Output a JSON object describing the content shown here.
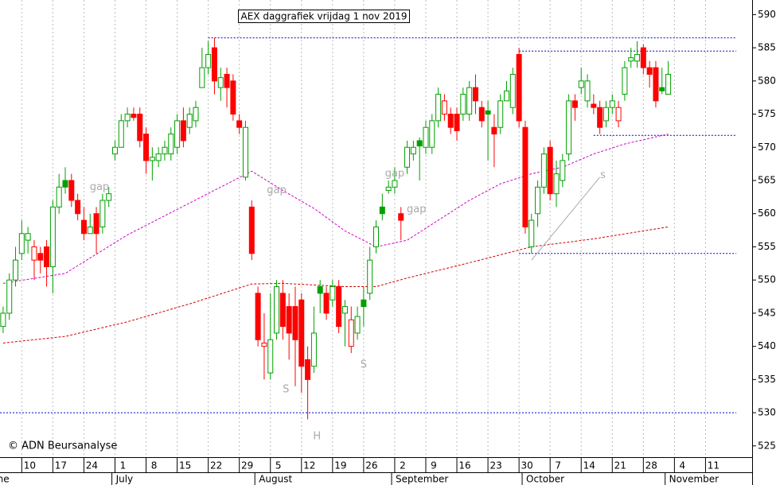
{
  "chart_data": {
    "type": "candlestick",
    "title": "AEX daggrafiek vrijdag 1 nov 2019",
    "copyright": "© ADN Beursanalyse",
    "xlim": [
      -0.5,
      120.5
    ],
    "ylim": [
      523.3,
      592.2
    ],
    "yticks": [
      525,
      530,
      535,
      540,
      545,
      550,
      555,
      560,
      565,
      570,
      575,
      580,
      585,
      590
    ],
    "xticks": [
      {
        "value": 3,
        "label": "10"
      },
      {
        "value": 8,
        "label": "17"
      },
      {
        "value": 13,
        "label": "24"
      },
      {
        "value": 18,
        "label": "1"
      },
      {
        "value": 23,
        "label": "8"
      },
      {
        "value": 28,
        "label": "15"
      },
      {
        "value": 33,
        "label": "22"
      },
      {
        "value": 38,
        "label": "29"
      },
      {
        "value": 43,
        "label": "5"
      },
      {
        "value": 48,
        "label": "12"
      },
      {
        "value": 53,
        "label": "19"
      },
      {
        "value": 58,
        "label": "26"
      },
      {
        "value": 63,
        "label": "2"
      },
      {
        "value": 68,
        "label": "9"
      },
      {
        "value": 73,
        "label": "16"
      },
      {
        "value": 78,
        "label": "23"
      },
      {
        "value": 83,
        "label": "30"
      },
      {
        "value": 88,
        "label": "7"
      },
      {
        "value": 93,
        "label": "14"
      },
      {
        "value": 98,
        "label": "21"
      },
      {
        "value": 103,
        "label": "28"
      },
      {
        "value": 108,
        "label": "4"
      },
      {
        "value": 113,
        "label": "11"
      }
    ],
    "months": [
      {
        "value": -3,
        "label": "June"
      },
      {
        "value": 17.5,
        "label": "July"
      },
      {
        "value": 40.5,
        "label": "August"
      },
      {
        "value": 62.5,
        "label": "September"
      },
      {
        "value": 83.5,
        "label": "October"
      },
      {
        "value": 106.5,
        "label": "November"
      }
    ],
    "up_color": "#00a000",
    "down_color": "#ff0000",
    "grid": true,
    "open": [
      543,
      545,
      550,
      554,
      556,
      553,
      554,
      555,
      552,
      561,
      565,
      565,
      562,
      559,
      557,
      560,
      558,
      562,
      569,
      570,
      574,
      575,
      575,
      572,
      568,
      568,
      569,
      569,
      570,
      574,
      573,
      574,
      579,
      582,
      585,
      579,
      581,
      580,
      574,
      565.5,
      561,
      548,
      540,
      536,
      542,
      548,
      546,
      546,
      547,
      538,
      537,
      549,
      548,
      547,
      549,
      545,
      540,
      542,
      547,
      548,
      555,
      561,
      563.5,
      564,
      560,
      567,
      569,
      571,
      570,
      570,
      574,
      575,
      575,
      575,
      575,
      575,
      579,
      576,
      575.5,
      573,
      573,
      577,
      576,
      584,
      573,
      555,
      560,
      564,
      570,
      563,
      565,
      569,
      577,
      579,
      577,
      576.5,
      576,
      574,
      576,
      574,
      578,
      583,
      583,
      585,
      582,
      582,
      579,
      578
    ],
    "high": [
      546,
      551,
      555,
      559,
      558,
      556,
      555,
      556,
      562,
      566,
      567,
      566,
      563,
      561,
      560,
      561,
      563,
      564,
      571,
      575,
      576,
      576,
      576,
      573,
      570,
      570,
      571,
      573,
      575,
      576,
      576,
      577,
      585,
      586,
      586.5,
      582,
      582,
      581,
      575,
      574,
      562,
      549,
      545,
      548,
      550,
      550,
      548,
      549,
      548,
      540,
      546,
      550,
      549,
      550,
      550,
      547,
      546,
      546,
      549,
      555,
      559,
      563,
      565,
      567,
      561,
      571,
      571,
      571.5,
      574,
      575,
      579,
      578,
      576,
      576,
      579,
      580,
      581,
      577,
      577,
      575,
      578,
      580,
      582,
      585,
      574,
      560,
      565,
      570,
      571,
      568,
      569,
      578,
      578,
      582,
      581,
      578,
      577,
      577,
      578,
      577,
      583,
      585,
      586,
      585.5,
      583,
      583,
      582,
      583
    ],
    "low": [
      542,
      544,
      549,
      553,
      554,
      550,
      551,
      549,
      548,
      560,
      563,
      561,
      559,
      556,
      557,
      554,
      557,
      561,
      568,
      570,
      573,
      574,
      570,
      566,
      565,
      567,
      568,
      568,
      569,
      570,
      572,
      573,
      579,
      581,
      578,
      577,
      576,
      574,
      572,
      565,
      553,
      540,
      535,
      535,
      541,
      541,
      538,
      534,
      533,
      529,
      536,
      545,
      544,
      546,
      542,
      540,
      539,
      541,
      543,
      547,
      554,
      559,
      563,
      563,
      556,
      566,
      568,
      565,
      569,
      569,
      573,
      574,
      572,
      571,
      574,
      574,
      575,
      573,
      568,
      567,
      572,
      577,
      575,
      573,
      557,
      554,
      558,
      563,
      562,
      561,
      564,
      568,
      574,
      578,
      576,
      575,
      572,
      573,
      575,
      573,
      577,
      582,
      582,
      581,
      579,
      576,
      578,
      578
    ],
    "close": [
      545,
      550,
      553,
      557,
      557,
      555,
      553,
      552,
      561,
      564,
      564,
      562,
      560,
      557,
      558,
      557,
      562,
      563,
      570,
      574,
      575,
      574.5,
      571,
      568,
      568.5,
      569,
      570,
      572,
      574,
      571,
      575,
      576,
      582,
      584,
      580,
      580.5,
      579,
      575,
      573,
      573,
      554,
      541,
      540.5,
      541,
      549,
      543,
      542,
      541,
      537,
      535,
      542,
      548,
      545,
      549,
      543,
      546,
      544,
      544.5,
      546,
      553,
      558,
      560,
      564,
      565,
      559,
      570,
      570,
      570.2,
      573,
      574,
      578,
      577,
      573,
      572.5,
      578,
      579,
      577,
      574,
      575,
      572,
      577,
      578.5,
      581,
      574,
      558,
      559,
      564,
      569,
      563,
      566,
      568,
      577,
      576,
      580,
      580,
      576,
      573,
      576,
      577,
      576,
      582,
      583.5,
      584,
      582,
      581,
      577,
      578.5,
      581
    ],
    "moving_averages": [
      {
        "color": "#d000d0",
        "x": [
          0,
          10,
          20,
          30,
          40,
          45,
          50,
          55,
          60,
          65,
          70,
          75,
          80,
          85,
          90,
          95,
          100,
          107
        ],
        "values": [
          549.5,
          551,
          556.8,
          561.6,
          566.4,
          563.5,
          560.8,
          557.4,
          555,
          556,
          559,
          562,
          564.5,
          566,
          567,
          569,
          570.5,
          572
        ]
      },
      {
        "color": "#d00000",
        "x": [
          0,
          10,
          20,
          30,
          40,
          45,
          55,
          60,
          65,
          75,
          85,
          95,
          107
        ],
        "values": [
          540.5,
          541.5,
          543.7,
          546.4,
          549.4,
          549.5,
          549,
          549,
          550.3,
          552.6,
          555,
          556.2,
          558
        ]
      }
    ],
    "levels_color": "#0000cc",
    "levels": [
      {
        "value": 586.5,
        "from": 33
      },
      {
        "value": 584.5,
        "from": 83
      },
      {
        "value": 571.8,
        "from": 95
      },
      {
        "value": 554,
        "from": 83
      },
      {
        "value": 530,
        "from": -0.5
      }
    ],
    "trendline": {
      "x": [
        85,
        96
      ],
      "values": [
        553,
        565.5
      ]
    },
    "annotations": [
      {
        "text": "gap",
        "x": 15.5,
        "value": 564
      },
      {
        "text": "gap",
        "x": 44,
        "value": 563.5
      },
      {
        "text": "gap",
        "x": 63,
        "value": 566
      },
      {
        "text": "gap",
        "x": 66.5,
        "value": 560.6
      },
      {
        "text": "S",
        "x": 45.5,
        "value": 533.5
      },
      {
        "text": "H",
        "x": 50.5,
        "value": 526.4
      },
      {
        "text": "S",
        "x": 58,
        "value": 537.2
      },
      {
        "text": "s",
        "x": 96.5,
        "value": 565.8
      }
    ]
  }
}
